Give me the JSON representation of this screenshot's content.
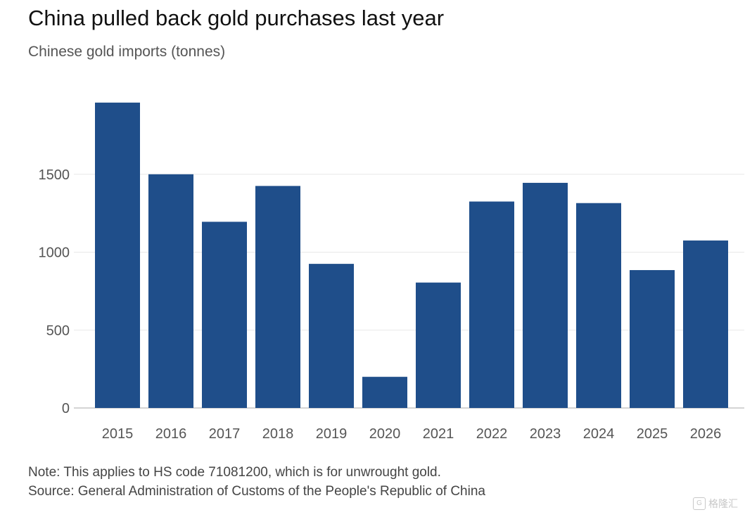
{
  "title": "China pulled back gold purchases last year",
  "subtitle": "Chinese gold imports (tonnes)",
  "note": "Note: This applies to HS code 71081200, which is for unwrought gold.",
  "source": "Source: General Administration of Customs of the People's Republic of China",
  "watermark": "格隆汇",
  "colors": {
    "bar": "#1f4e8a",
    "grid": "#e8e8e8",
    "axis": "#bbbbbb"
  },
  "chart_data": {
    "type": "bar",
    "categories": [
      "2015",
      "2016",
      "2017",
      "2018",
      "2019",
      "2020",
      "2021",
      "2022",
      "2023",
      "2024",
      "2025",
      "2026"
    ],
    "values": [
      1960,
      1500,
      1195,
      1425,
      925,
      200,
      805,
      1325,
      1445,
      1315,
      885,
      1075
    ],
    "yticks": [
      0,
      500,
      1000,
      1500
    ],
    "ylim": [
      0,
      2000
    ],
    "grid": true,
    "legend": "none"
  }
}
